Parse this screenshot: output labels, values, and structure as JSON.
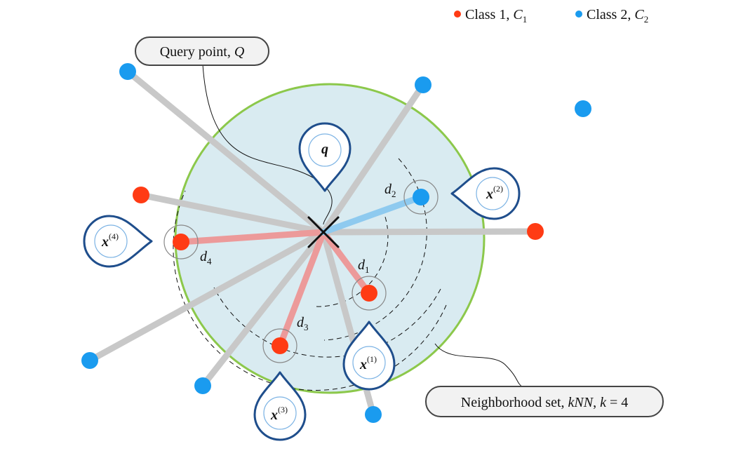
{
  "legend": {
    "class1": {
      "text": "Class 1, ",
      "symbol": "C",
      "sub": "1",
      "color": "#ff3b14"
    },
    "class2": {
      "text": "Class 2, ",
      "symbol": "C",
      "sub": "2",
      "color": "#1a9bef"
    }
  },
  "callouts": {
    "query": {
      "text": "Query point, ",
      "symbol": "Q"
    },
    "neighborhood": {
      "text": "Neighborhood set, ",
      "knn": "kNN",
      "sep": ", ",
      "k": "k",
      "eq": " = 4"
    }
  },
  "markers": {
    "q": "q",
    "x1": {
      "base": "x",
      "sup": "(1)"
    },
    "x2": {
      "base": "x",
      "sup": "(2)"
    },
    "x3": {
      "base": "x",
      "sup": "(3)"
    },
    "x4": {
      "base": "x",
      "sup": "(4)"
    }
  },
  "distances": {
    "d1": {
      "base": "d",
      "sub": "1"
    },
    "d2": {
      "base": "d",
      "sub": "2"
    },
    "d3": {
      "base": "d",
      "sub": "3"
    },
    "d4": {
      "base": "d",
      "sub": "4"
    }
  },
  "colors": {
    "neighborhood_fill": "#d9ebf1",
    "neighborhood_stroke": "#8cc84b",
    "marker_stroke": "#1f4e8c",
    "gray_line": "#c8c8c8",
    "red_line": "#ec9a9a",
    "blue_line": "#8ecaef"
  }
}
